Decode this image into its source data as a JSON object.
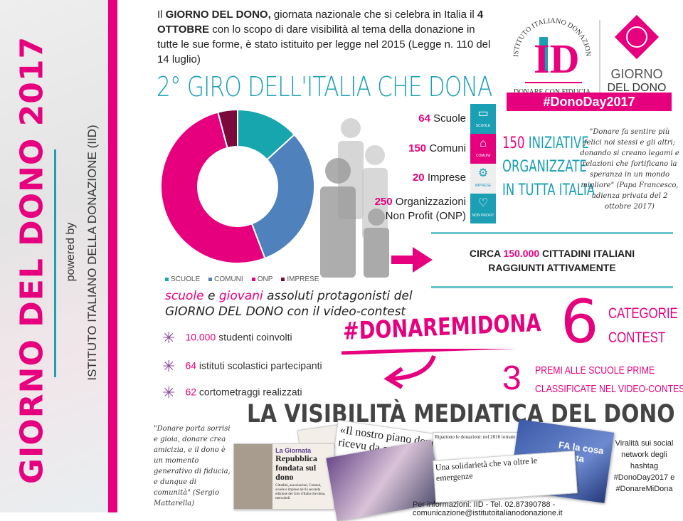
{
  "sidebar": {
    "title": "GIORNO DEL DONO 2017",
    "powered": "powered by",
    "org": "ISTITUTO ITALIANO DELLA DONAZIONE (IID)"
  },
  "intro": {
    "p1": "Il ",
    "b1": "GIORNO DEL DONO,",
    "p2": " giornata nazionale che si celebra in Italia il ",
    "b2": "4 OTTOBRE",
    "p3": " con lo scopo di dare visibilità al tema della donazione in tutte le sue forme, è stato istituito per legge nel 2015 (Legge n. 110 del 14 luglio)"
  },
  "giro_title": "2° GIRO DELL'ITALIA CHE DONA",
  "logo": {
    "arc": "ISTITUTO ITALIANO DONAZIONE",
    "mono": "ID",
    "tagline": "DONARE CON FIDUCIA",
    "giorno1": "GIORNO",
    "giorno2": "DEL DONO",
    "hashtag": "#DonoDay2017"
  },
  "stats": [
    {
      "num": "64",
      "label": "Scuole"
    },
    {
      "num": "150",
      "label": "Comuni"
    },
    {
      "num": "20",
      "label": "Imprese"
    },
    {
      "num": "250",
      "label": "Organizzazioni Non Profit (ONP)"
    }
  ],
  "icon_blocks": [
    {
      "icon": "book-icon",
      "label": "SCUOLE",
      "color": "#1a9fb5"
    },
    {
      "icon": "townhall-icon",
      "label": "COMUNI",
      "color": "#e6007e"
    },
    {
      "icon": "gears-icon",
      "label": "IMPRESE",
      "color": "#eeeeee"
    },
    {
      "icon": "heart-icon",
      "label": "NON PROFIT",
      "color": "#1a9fb5"
    }
  ],
  "iniziative": {
    "num": "150",
    "l1": " INIZIATIVE",
    "l2": "ORGANIZZATE",
    "l3": "IN TUTTA ITALIA"
  },
  "papa_quote": "\"Donare fa sentire più felici noi stessi e gli altri; donando si creano legami e relazioni che fortificano la speranza in un mondo migliore\" (Papa Francesco, udienza privata del 2 ottobre 2017)",
  "circa": {
    "a": "CIRCA ",
    "num": "150.000",
    "b": " CITTADINI ITALIANI",
    "c": "RAGGIUNTI ATTIVAMENTE"
  },
  "chart_data": {
    "type": "pie",
    "donut": true,
    "categories": [
      "SCUOLE",
      "COMUNI",
      "ONP",
      "IMPRESE"
    ],
    "values": [
      64,
      150,
      250,
      20
    ],
    "colors": [
      "#17a5ae",
      "#4f81bd",
      "#e6007e",
      "#7a0a3c"
    ],
    "legend": "bottom"
  },
  "protagonisti": {
    "a": "scuole",
    "b": " e ",
    "c": "giovani",
    "d": " assoluti protagonisti del",
    "e": "GIORNO DEL DONO",
    "f": " con il video-contest"
  },
  "bullets": [
    {
      "num": "10.000",
      "text": " studenti coinvolti"
    },
    {
      "num": "64",
      "text": " istituti scolastici partecipanti"
    },
    {
      "num": "62",
      "text": " cortometraggi realizzati"
    }
  ],
  "contest": {
    "hashtag": "#DONAREMIDONA",
    "six": "6",
    "cat1": "CATEGORIE",
    "cat2": "CONTEST",
    "three": "3",
    "premi1": "PREMI ALLE SCUOLE PRIME",
    "premi2": "CLASSIFICATE NEL VIDEO-CONTEST"
  },
  "visibilita": "LA VISIBILITÀ MEDIATICA DEL DONO",
  "mattarella_quote": "\"Donare porta sorrisi e gioia, donare crea amicizia, e il dono è un momento generativo di fiducia, e dunque di comunità\" (Sergio Mattarella)",
  "clips": {
    "giornata": "La Giornata",
    "repubblica": "Repubblica fondata sul dono",
    "cittadini": "Cittadini, associazioni, Comuni, scuole e imprese nel la seconda edizione del Giro d'Italia che dona, mercoledì.",
    "piano": "«Il nostro piano dono ricevu da co",
    "ripartono": "Ripartono le donazioni: nel 2016 tornate ai livelli pre-crisi",
    "solidarieta": "Una solidarietà che va oltre le emergenze",
    "fa": "FA la cosa giusta"
  },
  "viral": "Viralità sui social network degli hashtag #DonoDay2017 e #DonareMiDona",
  "footer": "Per informazioni: IID - Tel. 02.87390788 - comunicazione@istitutoitalianodonazione.it"
}
